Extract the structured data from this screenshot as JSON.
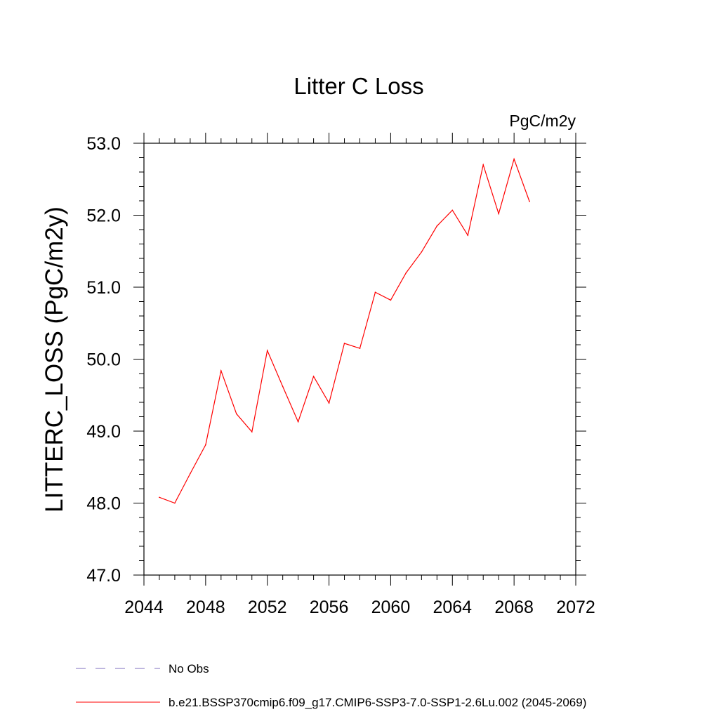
{
  "chart_data": {
    "type": "line",
    "title": "Litter C Loss",
    "units": "PgC/m2y",
    "ylabel": "LITTERC_LOSS  (PgC/m2y)",
    "xlabel": "",
    "xlim": [
      2044,
      2072
    ],
    "ylim": [
      47.0,
      53.0
    ],
    "xticks": [
      2044,
      2048,
      2052,
      2056,
      2060,
      2064,
      2068,
      2072
    ],
    "xtick_labels": [
      "2044",
      "2048",
      "2052",
      "2056",
      "2060",
      "2064",
      "2068",
      "2072"
    ],
    "yticks": [
      47.0,
      48.0,
      49.0,
      50.0,
      51.0,
      52.0,
      53.0
    ],
    "ytick_labels": [
      "47.0",
      "48.0",
      "49.0",
      "50.0",
      "51.0",
      "52.0",
      "53.0"
    ],
    "grid": false,
    "legend_position": "bottom",
    "series": [
      {
        "name": "b.e21.BSSP370cmip6.f09_g17.CMIP6-SSP3-7.0-SSP1-2.6Lu.002 (2045-2069)",
        "color": "#ff0000",
        "style": "solid",
        "x": [
          2045,
          2046,
          2047,
          2048,
          2049,
          2050,
          2051,
          2052,
          2053,
          2054,
          2055,
          2056,
          2057,
          2058,
          2059,
          2060,
          2061,
          2062,
          2063,
          2064,
          2065,
          2066,
          2067,
          2068,
          2069
        ],
        "y": [
          48.08,
          48.0,
          48.41,
          48.81,
          49.84,
          49.24,
          48.99,
          50.12,
          49.62,
          49.13,
          49.76,
          49.39,
          50.22,
          50.15,
          50.93,
          50.82,
          51.2,
          51.49,
          51.85,
          52.07,
          51.72,
          52.7,
          52.02,
          52.78,
          52.19
        ]
      }
    ],
    "legend": [
      {
        "label": "No Obs",
        "color": "#7f6fbf",
        "style": "dashed"
      },
      {
        "label": "b.e21.BSSP370cmip6.f09_g17.CMIP6-SSP3-7.0-SSP1-2.6Lu.002 (2045-2069)",
        "color": "#ff0000",
        "style": "solid"
      }
    ]
  }
}
